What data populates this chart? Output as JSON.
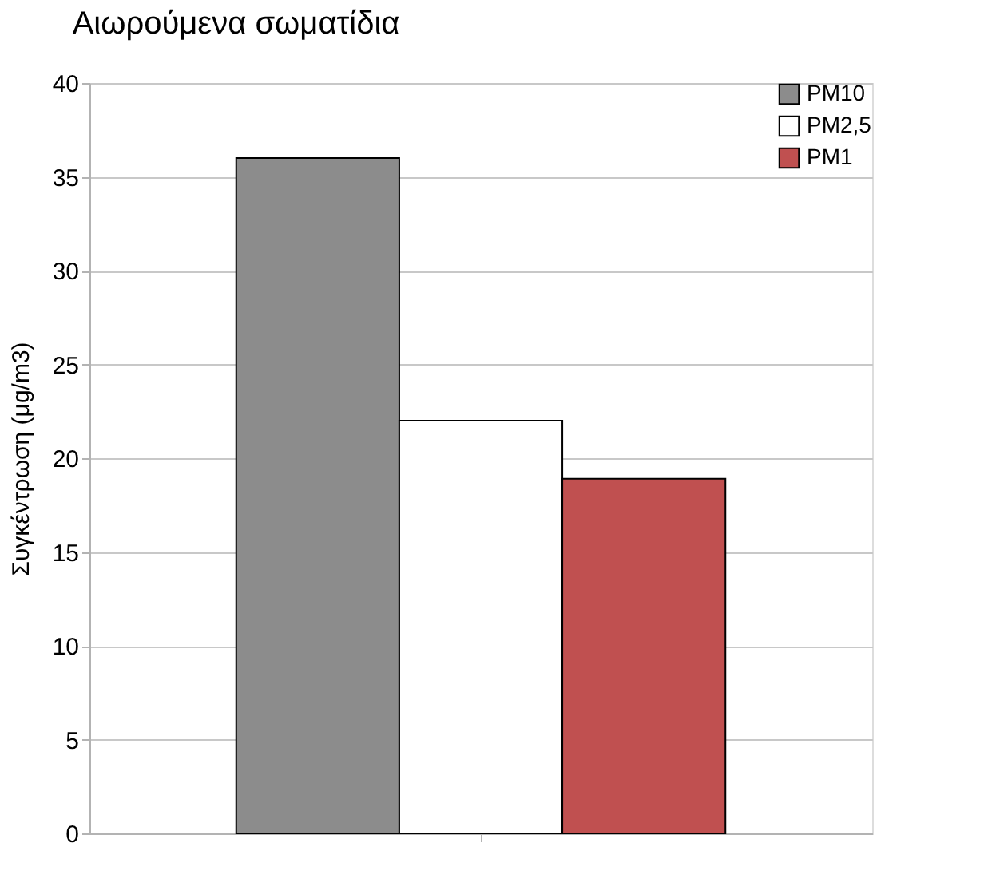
{
  "chart_data": {
    "type": "bar",
    "title": "Αιωρούμενα σωματίδια",
    "ylabel": "Συγκέντρωση (μg/m3)",
    "categories": [
      null
    ],
    "series": [
      {
        "name": "PM10",
        "color": "#8c8c8c",
        "values": [
          36
        ]
      },
      {
        "name": "PM2,5",
        "color": "#ffffff",
        "values": [
          22
        ]
      },
      {
        "name": "PM1",
        "color": "#c05050",
        "values": [
          18.9
        ]
      }
    ],
    "ylim": [
      0,
      40
    ],
    "yticks": [
      0,
      5,
      10,
      15,
      20,
      25,
      30,
      35,
      40
    ],
    "grid": "y",
    "legend": "top right",
    "tick_labels": "y"
  }
}
